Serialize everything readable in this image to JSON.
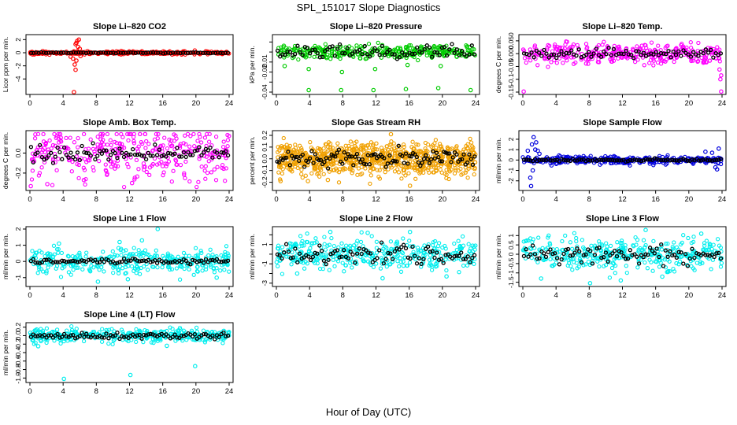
{
  "figure": {
    "title": "SPL_151017  Slope Diagnostics",
    "xlabel": "Hour of Day (UTC)"
  },
  "chart_data": [
    {
      "type": "scatter",
      "title": "Slope Li–820 CO2",
      "ylabel": "Licor ppm per min.",
      "xlim": [
        0,
        24
      ],
      "ylim": [
        -6,
        2.4
      ],
      "yticks": [
        -4,
        -2,
        0,
        2
      ],
      "ytick_labels": [
        "-4",
        "-2",
        "0",
        "2"
      ],
      "xticks": [
        0,
        4,
        8,
        12,
        16,
        20,
        24
      ],
      "xtick_labels": [
        "0",
        "4",
        "8",
        "12",
        "16",
        "20",
        "24"
      ],
      "color": "#ff0000",
      "spread": 0.12,
      "mean_spread": 0.06,
      "n": 320,
      "nmean": 80,
      "outliers": [
        [
          5.3,
          -6
        ],
        [
          5.5,
          -2.6
        ],
        [
          5.4,
          -1.8
        ],
        [
          5.6,
          -1.2
        ],
        [
          5.8,
          0.9
        ],
        [
          5.6,
          1.5
        ],
        [
          5.9,
          2.0
        ],
        [
          5.7,
          1.8
        ],
        [
          5.5,
          1.3
        ],
        [
          6.0,
          0.6
        ],
        [
          5.2,
          -0.9
        ],
        [
          4.9,
          -0.6
        ],
        [
          6.1,
          -0.5
        ]
      ]
    },
    {
      "type": "scatter",
      "title": "Slope Li–820 Pressure",
      "ylabel": "kPa per min.",
      "xlim": [
        0,
        24
      ],
      "ylim": [
        -0.04,
        0.015
      ],
      "yticks": [
        -0.04,
        -0.03,
        -0.02,
        -0.01,
        0.0,
        0.01
      ],
      "ytick_labels": [
        "-0.04",
        "",
        "-0.02",
        "-0.01",
        "",
        ""
      ],
      "xticks": [
        0,
        4,
        8,
        12,
        16,
        20,
        24
      ],
      "xtick_labels": [
        "0",
        "4",
        "8",
        "12",
        "16",
        "20",
        "24"
      ],
      "color": "#00cc00",
      "spread": 0.0035,
      "mean_spread": 0.005,
      "n": 320,
      "nmean": 80,
      "outliers": [
        [
          3.9,
          -0.038
        ],
        [
          7.8,
          -0.038
        ],
        [
          11.7,
          -0.038
        ],
        [
          15.6,
          -0.037
        ],
        [
          19.5,
          -0.036
        ],
        [
          23.4,
          -0.038
        ],
        [
          1.0,
          -0.014
        ],
        [
          3.9,
          -0.017
        ],
        [
          7.9,
          -0.02
        ],
        [
          11.9,
          -0.017
        ],
        [
          15.8,
          -0.013
        ],
        [
          19.8,
          -0.014
        ]
      ]
    },
    {
      "type": "scatter",
      "title": "Slope Li–820 Temp.",
      "ylabel": "degrees C per min.",
      "xlim": [
        0,
        24
      ],
      "ylim": [
        -0.15,
        0.065
      ],
      "yticks": [
        -0.15,
        -0.1,
        -0.05,
        0.0,
        0.05
      ],
      "ytick_labels": [
        "-0.15",
        "-0.1",
        "-0.05",
        "0.000",
        "0.050"
      ],
      "xticks": [
        0,
        4,
        8,
        12,
        16,
        20,
        24
      ],
      "xtick_labels": [
        "0",
        "4",
        "8",
        "12",
        "16",
        "20",
        "24"
      ],
      "color": "#ff00ff",
      "spread": 0.02,
      "mean_spread": 0.015,
      "n": 340,
      "nmean": 80,
      "outliers": [
        [
          0.1,
          -0.148
        ],
        [
          23.9,
          -0.148
        ],
        [
          23.8,
          -0.1
        ],
        [
          23.9,
          -0.085
        ],
        [
          23.7,
          -0.062
        ]
      ]
    },
    {
      "type": "scatter",
      "title": "Slope Amb. Box Temp.",
      "ylabel": "degrees C per min.",
      "xlim": [
        0,
        24
      ],
      "ylim": [
        -0.35,
        0.2
      ],
      "yticks": [
        -0.2,
        0.0
      ],
      "ytick_labels": [
        "-0.2",
        "0.0"
      ],
      "xticks": [
        0,
        4,
        8,
        12,
        16,
        20,
        24
      ],
      "xtick_labels": [
        "0",
        "4",
        "8",
        "12",
        "16",
        "20",
        "24"
      ],
      "color": "#ff00ff",
      "spread": 0.13,
      "mean_spread": 0.07,
      "n": 340,
      "nmean": 90,
      "outliers": [
        [
          0.1,
          -0.33
        ],
        [
          2.1,
          -0.31
        ],
        [
          6.5,
          -0.27
        ],
        [
          12.3,
          -0.3
        ]
      ]
    },
    {
      "type": "scatter",
      "title": "Slope Gas Stream RH",
      "ylabel": "percent per min.",
      "xlim": [
        0,
        24
      ],
      "ylim": [
        -0.25,
        0.22
      ],
      "yticks": [
        -0.2,
        -0.1,
        0.0,
        0.1,
        0.2
      ],
      "ytick_labels": [
        "-0.2",
        "-0.1",
        "0.0",
        "0.1",
        "0.2"
      ],
      "xticks": [
        0,
        4,
        8,
        12,
        16,
        20,
        24
      ],
      "xtick_labels": [
        "0",
        "4",
        "8",
        "12",
        "16",
        "20",
        "24"
      ],
      "color": "#f0a000",
      "spread": 0.07,
      "mean_spread": 0.06,
      "n": 800,
      "nmean": 110,
      "outliers": [
        [
          16.1,
          -0.23
        ],
        [
          13.8,
          0.21
        ],
        [
          0.5,
          -0.19
        ],
        [
          3.8,
          -0.19
        ],
        [
          6.2,
          -0.18
        ]
      ]
    },
    {
      "type": "scatter",
      "title": "Slope Sample Flow",
      "ylabel": "ml/min per min.",
      "xlim": [
        0,
        24
      ],
      "ylim": [
        -2.7,
        2.6
      ],
      "yticks": [
        -2,
        -1,
        0,
        1,
        2
      ],
      "ytick_labels": [
        "-2",
        "-1",
        "0",
        "1",
        "2"
      ],
      "xticks": [
        0,
        4,
        8,
        12,
        16,
        20,
        24
      ],
      "xtick_labels": [
        "0",
        "4",
        "8",
        "12",
        "16",
        "20",
        "24"
      ],
      "color": "#0000dd",
      "spread": 0.18,
      "mean_spread": 0.1,
      "n": 360,
      "nmean": 90,
      "outliers": [
        [
          1.0,
          -2.5
        ],
        [
          0.9,
          -1.7
        ],
        [
          1.2,
          -1.0
        ],
        [
          1.5,
          1.0
        ],
        [
          1.3,
          2.2
        ],
        [
          1.1,
          1.5
        ],
        [
          1.6,
          1.7
        ],
        [
          1.8,
          0.9
        ],
        [
          2.0,
          0.6
        ],
        [
          0.6,
          0.9
        ],
        [
          23.4,
          -0.9
        ],
        [
          23.6,
          1.1
        ],
        [
          23.2,
          -0.7
        ],
        [
          22.0,
          0.8
        ],
        [
          22.8,
          0.7
        ]
      ]
    },
    {
      "type": "scatter",
      "title": "Slope Line 1 Flow",
      "ylabel": "ml/min per min.",
      "xlim": [
        0,
        24
      ],
      "ylim": [
        -1.4,
        2.0
      ],
      "yticks": [
        -1,
        0,
        1,
        2
      ],
      "ytick_labels": [
        "-1",
        "0",
        "1",
        "2"
      ],
      "xticks": [
        0,
        4,
        8,
        12,
        16,
        20,
        24
      ],
      "xtick_labels": [
        "0",
        "4",
        "8",
        "12",
        "16",
        "20",
        "24"
      ],
      "color": "#00eeee",
      "spread": 0.4,
      "mean_spread": 0.12,
      "n": 330,
      "nmean": 90,
      "outliers": [
        [
          15.4,
          2.0
        ],
        [
          8.2,
          -1.25
        ],
        [
          10.8,
          1.2
        ],
        [
          11.8,
          -1.1
        ],
        [
          3.5,
          1.1
        ],
        [
          22.5,
          -1.0
        ],
        [
          13.5,
          1.3
        ]
      ]
    },
    {
      "type": "scatter",
      "title": "Slope Line 2 Flow",
      "ylabel": "ml/min per min.",
      "xlim": [
        0,
        24
      ],
      "ylim": [
        -3.1,
        2.6
      ],
      "yticks": [
        -3,
        -2,
        -1,
        0,
        1,
        2
      ],
      "ytick_labels": [
        "-3",
        "",
        "-1",
        "",
        "1",
        ""
      ],
      "xticks": [
        0,
        4,
        8,
        12,
        16,
        20,
        24
      ],
      "xtick_labels": [
        "0",
        "4",
        "8",
        "12",
        "16",
        "20",
        "24"
      ],
      "color": "#00eeee",
      "spread": 0.8,
      "mean_spread": 0.9,
      "n": 360,
      "nmean": 90,
      "outliers": [
        [
          12.8,
          -2.5
        ],
        [
          16.1,
          2.3
        ],
        [
          6.5,
          2.3
        ],
        [
          11.0,
          2.2
        ],
        [
          2.5,
          -2.0
        ],
        [
          20.5,
          -2.3
        ]
      ]
    },
    {
      "type": "scatter",
      "title": "Slope Line 3 Flow",
      "ylabel": "ml/min per min.",
      "xlim": [
        0,
        24
      ],
      "ylim": [
        -1.6,
        1.35
      ],
      "yticks": [
        -1.5,
        -1,
        -0.5,
        0,
        0.5,
        1
      ],
      "ytick_labels": [
        "-1.5",
        "-1",
        "-0.5",
        "0",
        "0.5",
        "1"
      ],
      "xticks": [
        0,
        4,
        8,
        12,
        16,
        20,
        24
      ],
      "xtick_labels": [
        "0",
        "4",
        "8",
        "12",
        "16",
        "20",
        "24"
      ],
      "color": "#00eeee",
      "spread": 0.42,
      "mean_spread": 0.4,
      "n": 360,
      "nmean": 90,
      "outliers": [
        [
          8.1,
          -1.55
        ],
        [
          14.8,
          1.3
        ],
        [
          2.2,
          -1.3
        ],
        [
          16.8,
          -1.2
        ],
        [
          11.8,
          -1.4
        ],
        [
          21.5,
          1.1
        ]
      ]
    },
    {
      "type": "scatter",
      "title": "Slope Line 4 (LT) Flow",
      "ylabel": "ml/min per min.",
      "xlim": [
        0,
        24
      ],
      "ylim": [
        -1.05,
        0.25
      ],
      "yticks": [
        -1.0,
        -0.8,
        -0.6,
        -0.4,
        -0.2,
        0.0,
        0.2
      ],
      "ytick_labels": [
        "-1.0",
        "-0.8",
        "-0.6",
        "-0.4",
        "-0.2",
        "0.0",
        "0.2"
      ],
      "xticks": [
        0,
        4,
        8,
        12,
        16,
        20,
        24
      ],
      "xtick_labels": [
        "0",
        "4",
        "8",
        "12",
        "16",
        "20",
        "24"
      ],
      "color": "#00eeee",
      "spread": 0.08,
      "mean_spread": 0.06,
      "n": 340,
      "nmean": 90,
      "outliers": [
        [
          4.1,
          -1.02
        ],
        [
          12.1,
          -0.93
        ],
        [
          19.9,
          -0.72
        ],
        [
          1.0,
          -0.25
        ],
        [
          16.5,
          -0.24
        ]
      ]
    }
  ]
}
